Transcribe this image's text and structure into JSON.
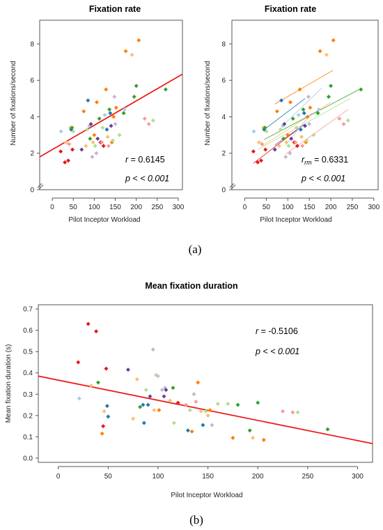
{
  "figure": {
    "caption_a": "(a)",
    "caption_b": "(b)"
  },
  "chart_data": [
    {
      "type": "scatter",
      "title": "Fixation rate",
      "xlabel": "Pilot Inceptor Workload",
      "ylabel": "Number of fixations/second",
      "xlim": [
        -30,
        310
      ],
      "ylim": [
        0,
        9.3
      ],
      "xticks": [
        0,
        50,
        100,
        150,
        200,
        250,
        300
      ],
      "yticks": [
        0,
        2,
        4,
        6,
        8
      ],
      "axis_break": true,
      "annotations": {
        "r_label": "r",
        "r_value": " = 0.6145",
        "p_text": "p < < 0.001"
      },
      "fit": {
        "color": "#ee1c1c",
        "x": [
          -30,
          310
        ],
        "y": [
          1.8,
          6.34
        ]
      },
      "points": [
        {
          "x": 20,
          "y": 2.1,
          "c": "#e31a1c"
        },
        {
          "x": 21,
          "y": 3.2,
          "c": "#a6cee3"
        },
        {
          "x": 30,
          "y": 1.5,
          "c": "#e31a1c"
        },
        {
          "x": 33,
          "y": 2.6,
          "c": "#fdbf6f"
        },
        {
          "x": 38,
          "y": 1.6,
          "c": "#e31a1c"
        },
        {
          "x": 40,
          "y": 2.5,
          "c": "#fb9a99"
        },
        {
          "x": 43,
          "y": 3.4,
          "c": "#fdbf6f"
        },
        {
          "x": 45,
          "y": 3.3,
          "c": "#1f78b4"
        },
        {
          "x": 47,
          "y": 3.4,
          "c": "#33a02c"
        },
        {
          "x": 48,
          "y": 2.2,
          "c": "#e31a1c"
        },
        {
          "x": 50,
          "y": 3.2,
          "c": "#b2df8a"
        },
        {
          "x": 70,
          "y": 2.2,
          "c": "#6a3d9a"
        },
        {
          "x": 75,
          "y": 4.3,
          "c": "#ff7f00"
        },
        {
          "x": 80,
          "y": 2.4,
          "c": "#fdbf6f"
        },
        {
          "x": 83,
          "y": 3.3,
          "c": "#b2df8a"
        },
        {
          "x": 85,
          "y": 4.9,
          "c": "#1f78b4"
        },
        {
          "x": 88,
          "y": 3.5,
          "c": "#a6cee3"
        },
        {
          "x": 90,
          "y": 2.8,
          "c": "#33a02c"
        },
        {
          "x": 92,
          "y": 3.6,
          "c": "#6a3d9a"
        },
        {
          "x": 95,
          "y": 1.8,
          "c": "#cab2d6"
        },
        {
          "x": 97,
          "y": 2.6,
          "c": "#fdbf6f"
        },
        {
          "x": 100,
          "y": 3.0,
          "c": "#ff7f00"
        },
        {
          "x": 102,
          "y": 2.4,
          "c": "#b2df8a"
        },
        {
          "x": 105,
          "y": 2.0,
          "c": "#cab2d6"
        },
        {
          "x": 106,
          "y": 4.8,
          "c": "#ff7f00"
        },
        {
          "x": 108,
          "y": 2.8,
          "c": "#6a3d9a"
        },
        {
          "x": 112,
          "y": 3.9,
          "c": "#33a02c"
        },
        {
          "x": 115,
          "y": 2.6,
          "c": "#e31a1c"
        },
        {
          "x": 118,
          "y": 2.6,
          "c": "#fb9a99"
        },
        {
          "x": 120,
          "y": 3.4,
          "c": "#b2df8a"
        },
        {
          "x": 122,
          "y": 2.4,
          "c": "#e31a1c"
        },
        {
          "x": 125,
          "y": 4.1,
          "c": "#a6cee3"
        },
        {
          "x": 128,
          "y": 5.5,
          "c": "#ff7f00"
        },
        {
          "x": 130,
          "y": 3.3,
          "c": "#1f78b4"
        },
        {
          "x": 132,
          "y": 2.9,
          "c": "#fdbf6f"
        },
        {
          "x": 134,
          "y": 2.4,
          "c": "#fb9a99"
        },
        {
          "x": 136,
          "y": 4.4,
          "c": "#33a02c"
        },
        {
          "x": 138,
          "y": 4.2,
          "c": "#1f78b4"
        },
        {
          "x": 140,
          "y": 3.5,
          "c": "#6a3d9a"
        },
        {
          "x": 142,
          "y": 2.6,
          "c": "#ff7f00"
        },
        {
          "x": 144,
          "y": 2.7,
          "c": "#b2df8a"
        },
        {
          "x": 146,
          "y": 4.0,
          "c": "#ff7f00"
        },
        {
          "x": 148,
          "y": 5.1,
          "c": "#cab2d6"
        },
        {
          "x": 150,
          "y": 3.6,
          "c": "#cab2d6"
        },
        {
          "x": 152,
          "y": 4.5,
          "c": "#ff7f00"
        },
        {
          "x": 160,
          "y": 3.0,
          "c": "#b2df8a"
        },
        {
          "x": 170,
          "y": 4.2,
          "c": "#33a02c"
        },
        {
          "x": 172,
          "y": 4.4,
          "c": "#a6cee3"
        },
        {
          "x": 175,
          "y": 7.6,
          "c": "#ff7f00"
        },
        {
          "x": 190,
          "y": 7.4,
          "c": "#fdbf6f"
        },
        {
          "x": 195,
          "y": 5.1,
          "c": "#33a02c"
        },
        {
          "x": 200,
          "y": 5.7,
          "c": "#33a02c"
        },
        {
          "x": 206,
          "y": 8.2,
          "c": "#ff7f00"
        },
        {
          "x": 220,
          "y": 3.9,
          "c": "#fb9a99"
        },
        {
          "x": 230,
          "y": 3.6,
          "c": "#fb9a99"
        },
        {
          "x": 240,
          "y": 3.8,
          "c": "#b2df8a"
        },
        {
          "x": 270,
          "y": 5.5,
          "c": "#33a02c"
        }
      ]
    },
    {
      "type": "scatter",
      "title": "Fixation rate",
      "xlabel": "Pilot Inceptor Workload",
      "ylabel": "Number of fixations/second",
      "xlim": [
        -30,
        310
      ],
      "ylim": [
        0,
        9.3
      ],
      "xticks": [
        0,
        50,
        100,
        150,
        200,
        250,
        300
      ],
      "yticks": [
        0,
        2,
        4,
        6,
        8
      ],
      "axis_break": true,
      "annotations": {
        "r_label": "r",
        "r_sub": "rm",
        "r_value": " = 0.6331",
        "p_text": "p < < 0.001"
      },
      "fits": [
        {
          "c": "#e31a1c",
          "x": [
            20,
            120
          ],
          "y": [
            1.45,
            3.25
          ]
        },
        {
          "c": "#fb9a99",
          "x": [
            95,
            240
          ],
          "y": [
            1.95,
            4.4
          ]
        },
        {
          "c": "#ff7f00",
          "x": [
            70,
            205
          ],
          "y": [
            4.7,
            6.55
          ]
        },
        {
          "c": "#fdbf6f",
          "x": [
            40,
            200
          ],
          "y": [
            2.4,
            4.8
          ]
        },
        {
          "c": "#33a02c",
          "x": [
            45,
            270
          ],
          "y": [
            2.75,
            5.55
          ]
        },
        {
          "c": "#b2df8a",
          "x": [
            30,
            245
          ],
          "y": [
            2.2,
            5.0
          ]
        },
        {
          "c": "#1f78b4",
          "x": [
            45,
            140
          ],
          "y": [
            3.3,
            5.0
          ]
        },
        {
          "c": "#a6cee3",
          "x": [
            85,
            180
          ],
          "y": [
            3.45,
            5.6
          ]
        },
        {
          "c": "#6a3d9a",
          "x": [
            70,
            140
          ],
          "y": [
            2.45,
            3.6
          ]
        },
        {
          "c": "#cab2d6",
          "x": [
            95,
            155
          ],
          "y": [
            2.45,
            4.2
          ]
        }
      ],
      "same_points_as_left_panel": true
    },
    {
      "type": "scatter",
      "title": "Mean fixation duration",
      "xlabel": "Pilot Inceptor Workload",
      "ylabel": "Mean fixation duration (s)",
      "xlim": [
        -20,
        315
      ],
      "ylim": [
        -0.02,
        0.72
      ],
      "xticks": [
        0,
        50,
        100,
        150,
        200,
        250,
        300
      ],
      "yticks": [
        0.0,
        0.1,
        0.2,
        0.3,
        0.4,
        0.5,
        0.6,
        0.7
      ],
      "annotations": {
        "r_label": "r",
        "r_value": " = -0.5106",
        "p_text": "p < < 0.001"
      },
      "fit": {
        "color": "#ee1c1c",
        "x": [
          -20,
          315
        ],
        "y": [
          0.385,
          0.068
        ]
      },
      "points": [
        {
          "x": 20,
          "y": 0.45,
          "c": "#e31a1c"
        },
        {
          "x": 21,
          "y": 0.28,
          "c": "#a6cee3"
        },
        {
          "x": 30,
          "y": 0.63,
          "c": "#e31a1c"
        },
        {
          "x": 33,
          "y": 0.34,
          "c": "#fdbf6f"
        },
        {
          "x": 38,
          "y": 0.595,
          "c": "#e31a1c"
        },
        {
          "x": 40,
          "y": 0.355,
          "c": "#33a02c"
        },
        {
          "x": 44,
          "y": 0.115,
          "c": "#ff7f00"
        },
        {
          "x": 45,
          "y": 0.15,
          "c": "#e31a1c"
        },
        {
          "x": 46,
          "y": 0.22,
          "c": "#fdbf6f"
        },
        {
          "x": 48,
          "y": 0.42,
          "c": "#e31a1c"
        },
        {
          "x": 49,
          "y": 0.245,
          "c": "#1f78b4"
        },
        {
          "x": 50,
          "y": 0.195,
          "c": "#1f78b4"
        },
        {
          "x": 70,
          "y": 0.415,
          "c": "#6a3d9a"
        },
        {
          "x": 75,
          "y": 0.185,
          "c": "#fdbf6f"
        },
        {
          "x": 79,
          "y": 0.37,
          "c": "#fdbf6f"
        },
        {
          "x": 82,
          "y": 0.24,
          "c": "#33a02c"
        },
        {
          "x": 85,
          "y": 0.25,
          "c": "#1f78b4"
        },
        {
          "x": 86,
          "y": 0.165,
          "c": "#1f78b4"
        },
        {
          "x": 88,
          "y": 0.32,
          "c": "#b2df8a"
        },
        {
          "x": 90,
          "y": 0.25,
          "c": "#1f78b4"
        },
        {
          "x": 92,
          "y": 0.29,
          "c": "#6a3d9a"
        },
        {
          "x": 95,
          "y": 0.51,
          "c": "#cab2d6"
        },
        {
          "x": 96,
          "y": 0.225,
          "c": "#fdbf6f"
        },
        {
          "x": 98,
          "y": 0.39,
          "c": "#fdbf6f"
        },
        {
          "x": 100,
          "y": 0.385,
          "c": "#a6cee3"
        },
        {
          "x": 101,
          "y": 0.225,
          "c": "#ff7f00"
        },
        {
          "x": 104,
          "y": 0.32,
          "c": "#cab2d6"
        },
        {
          "x": 106,
          "y": 0.29,
          "c": "#6a3d9a"
        },
        {
          "x": 107,
          "y": 0.33,
          "c": "#cab2d6"
        },
        {
          "x": 108,
          "y": 0.32,
          "c": "#6a3d9a"
        },
        {
          "x": 112,
          "y": 0.27,
          "c": "#fdbf6f"
        },
        {
          "x": 115,
          "y": 0.33,
          "c": "#33a02c"
        },
        {
          "x": 116,
          "y": 0.165,
          "c": "#b2df8a"
        },
        {
          "x": 120,
          "y": 0.26,
          "c": "#e31a1c"
        },
        {
          "x": 128,
          "y": 0.25,
          "c": "#fb9a99"
        },
        {
          "x": 130,
          "y": 0.13,
          "c": "#1f78b4"
        },
        {
          "x": 132,
          "y": 0.225,
          "c": "#b2df8a"
        },
        {
          "x": 134,
          "y": 0.125,
          "c": "#ff7f00"
        },
        {
          "x": 136,
          "y": 0.3,
          "c": "#cab2d6"
        },
        {
          "x": 138,
          "y": 0.265,
          "c": "#fb9a99"
        },
        {
          "x": 140,
          "y": 0.355,
          "c": "#ff7f00"
        },
        {
          "x": 143,
          "y": 0.22,
          "c": "#fdbf6f"
        },
        {
          "x": 145,
          "y": 0.155,
          "c": "#1f78b4"
        },
        {
          "x": 148,
          "y": 0.22,
          "c": "#b2df8a"
        },
        {
          "x": 150,
          "y": 0.2,
          "c": "#fdbf6f"
        },
        {
          "x": 152,
          "y": 0.225,
          "c": "#ff7f00"
        },
        {
          "x": 154,
          "y": 0.155,
          "c": "#cab2d6"
        },
        {
          "x": 160,
          "y": 0.255,
          "c": "#b2df8a"
        },
        {
          "x": 170,
          "y": 0.255,
          "c": "#b2df8a"
        },
        {
          "x": 175,
          "y": 0.095,
          "c": "#ff7f00"
        },
        {
          "x": 180,
          "y": 0.25,
          "c": "#33a02c"
        },
        {
          "x": 192,
          "y": 0.13,
          "c": "#33a02c"
        },
        {
          "x": 195,
          "y": 0.095,
          "c": "#fdbf6f"
        },
        {
          "x": 200,
          "y": 0.26,
          "c": "#33a02c"
        },
        {
          "x": 206,
          "y": 0.085,
          "c": "#ff7f00"
        },
        {
          "x": 225,
          "y": 0.22,
          "c": "#fb9a99"
        },
        {
          "x": 235,
          "y": 0.215,
          "c": "#fb9a99"
        },
        {
          "x": 240,
          "y": 0.215,
          "c": "#b2df8a"
        },
        {
          "x": 270,
          "y": 0.135,
          "c": "#33a02c"
        }
      ]
    }
  ]
}
